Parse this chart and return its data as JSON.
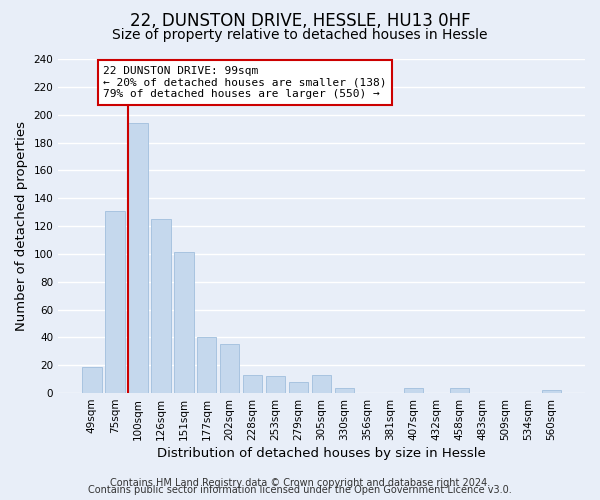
{
  "title": "22, DUNSTON DRIVE, HESSLE, HU13 0HF",
  "subtitle": "Size of property relative to detached houses in Hessle",
  "xlabel": "Distribution of detached houses by size in Hessle",
  "ylabel": "Number of detached properties",
  "bar_labels": [
    "49sqm",
    "75sqm",
    "100sqm",
    "126sqm",
    "151sqm",
    "177sqm",
    "202sqm",
    "228sqm",
    "253sqm",
    "279sqm",
    "305sqm",
    "330sqm",
    "356sqm",
    "381sqm",
    "407sqm",
    "432sqm",
    "458sqm",
    "483sqm",
    "509sqm",
    "534sqm",
    "560sqm"
  ],
  "bar_values": [
    19,
    131,
    194,
    125,
    101,
    40,
    35,
    13,
    12,
    8,
    13,
    4,
    0,
    0,
    4,
    0,
    4,
    0,
    0,
    0,
    2
  ],
  "bar_color": "#c5d8ed",
  "bar_edge_color": "#a8c4e0",
  "highlight_bar_index": 2,
  "highlight_color": "#cc0000",
  "annotation_title": "22 DUNSTON DRIVE: 99sqm",
  "annotation_line1": "← 20% of detached houses are smaller (138)",
  "annotation_line2": "79% of detached houses are larger (550) →",
  "annotation_box_facecolor": "#ffffff",
  "annotation_box_edgecolor": "#cc0000",
  "ylim": [
    0,
    240
  ],
  "yticks": [
    0,
    20,
    40,
    60,
    80,
    100,
    120,
    140,
    160,
    180,
    200,
    220,
    240
  ],
  "footer1": "Contains HM Land Registry data © Crown copyright and database right 2024.",
  "footer2": "Contains public sector information licensed under the Open Government Licence v3.0.",
  "bg_color": "#e8eef8",
  "grid_color": "#ffffff",
  "title_fontsize": 12,
  "subtitle_fontsize": 10,
  "axis_label_fontsize": 9.5,
  "tick_fontsize": 7.5,
  "annotation_fontsize": 8,
  "footer_fontsize": 7
}
